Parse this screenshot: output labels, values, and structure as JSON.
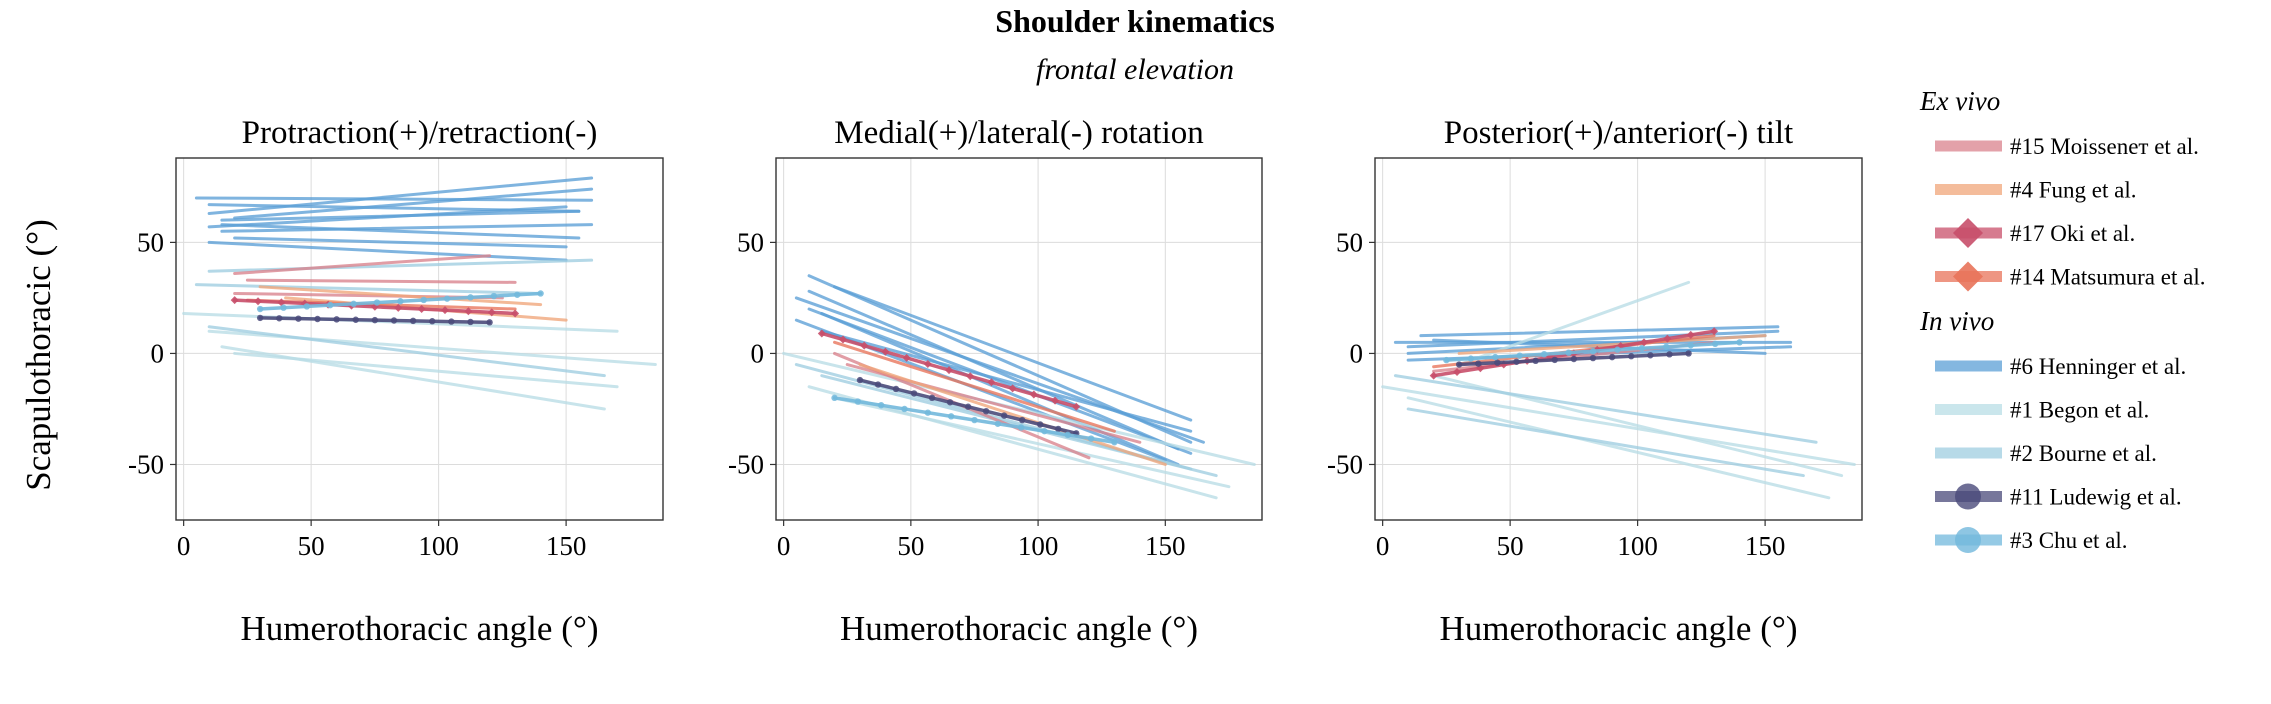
{
  "figure": {
    "title": "Shoulder kinematics",
    "subtitle": "frontal elevation",
    "ylabel": "Scapulothoracic (°)",
    "xlabel": "Humerothoracic angle (°)"
  },
  "colors": {
    "moissenet": "#d9818c",
    "fung": "#f0a57a",
    "oki": "#c84f6a",
    "matsumura": "#e8735a",
    "henninger": "#5b9fd6",
    "begon": "#b8dde6",
    "bourne": "#9fcde0",
    "ludewig": "#4a4a7a",
    "chu": "#72b8dc"
  },
  "legend": [
    {
      "group": "Ex vivo",
      "items": [
        {
          "label": "#15 Moisseneт et al.",
          "color_key": "moissenet",
          "marker": "none"
        },
        {
          "label": "#4 Fung et al.",
          "color_key": "fung",
          "marker": "none"
        },
        {
          "label": "#17 Oki et al.",
          "color_key": "oki",
          "marker": "diamond"
        },
        {
          "label": "#14 Matsumura et al.",
          "color_key": "matsumura",
          "marker": "diamond"
        }
      ]
    },
    {
      "group": "In vivo",
      "items": [
        {
          "label": "#6 Henninger et al.",
          "color_key": "henninger",
          "marker": "none"
        },
        {
          "label": "#1 Begon et al.",
          "color_key": "begon",
          "marker": "none"
        },
        {
          "label": "#2 Bourne et al.",
          "color_key": "bourne",
          "marker": "none"
        },
        {
          "label": "#11 Ludewig et al.",
          "color_key": "ludewig",
          "marker": "circle"
        },
        {
          "label": "#3 Chu et al.",
          "color_key": "chu",
          "marker": "circle"
        }
      ]
    }
  ],
  "chart_data": [
    {
      "type": "line",
      "title": "Protraction(+)/retraction(-)",
      "xlabel": "Humerothoracic angle (°)",
      "ylabel": "Scapulothoracic (°)",
      "xlim": [
        -3,
        188
      ],
      "ylim": [
        -75,
        88
      ],
      "xticks": [
        0,
        50,
        100,
        150
      ],
      "yticks": [
        -50,
        0,
        50
      ],
      "grid": true,
      "series": [
        {
          "study": "henninger",
          "x": [
            5,
            160
          ],
          "y": [
            70,
            69
          ]
        },
        {
          "study": "henninger",
          "x": [
            10,
            155
          ],
          "y": [
            67,
            64
          ]
        },
        {
          "study": "henninger",
          "x": [
            10,
            160
          ],
          "y": [
            63,
            79
          ]
        },
        {
          "study": "henninger",
          "x": [
            15,
            155
          ],
          "y": [
            60,
            64
          ]
        },
        {
          "study": "henninger",
          "x": [
            10,
            150
          ],
          "y": [
            57,
            66
          ]
        },
        {
          "study": "henninger",
          "x": [
            15,
            160
          ],
          "y": [
            55,
            58
          ]
        },
        {
          "study": "henninger",
          "x": [
            20,
            150
          ],
          "y": [
            52,
            48
          ]
        },
        {
          "study": "henninger",
          "x": [
            10,
            150
          ],
          "y": [
            50,
            42
          ]
        },
        {
          "study": "henninger",
          "x": [
            15,
            155
          ],
          "y": [
            58,
            52
          ]
        },
        {
          "study": "henninger",
          "x": [
            20,
            160
          ],
          "y": [
            61,
            74
          ]
        },
        {
          "study": "bourne",
          "x": [
            10,
            160
          ],
          "y": [
            37,
            42
          ]
        },
        {
          "study": "bourne",
          "x": [
            5,
            140
          ],
          "y": [
            31,
            27
          ]
        },
        {
          "study": "begon",
          "x": [
            0,
            170
          ],
          "y": [
            18,
            10
          ]
        },
        {
          "study": "begon",
          "x": [
            10,
            185
          ],
          "y": [
            10,
            -5
          ]
        },
        {
          "study": "begon",
          "x": [
            15,
            165
          ],
          "y": [
            3,
            -25
          ]
        },
        {
          "study": "begon",
          "x": [
            20,
            170
          ],
          "y": [
            0,
            -15
          ]
        },
        {
          "study": "bourne",
          "x": [
            10,
            165
          ],
          "y": [
            12,
            -10
          ]
        },
        {
          "study": "moissenet",
          "x": [
            20,
            120
          ],
          "y": [
            36,
            44
          ]
        },
        {
          "study": "moissenet",
          "x": [
            25,
            130
          ],
          "y": [
            33,
            32
          ]
        },
        {
          "study": "moissenet",
          "x": [
            20,
            125
          ],
          "y": [
            27,
            25
          ]
        },
        {
          "study": "fung",
          "x": [
            40,
            150
          ],
          "y": [
            25,
            15
          ]
        },
        {
          "study": "fung",
          "x": [
            30,
            140
          ],
          "y": [
            30,
            22
          ]
        },
        {
          "study": "matsumura",
          "x": [
            25,
            130
          ],
          "y": [
            24,
            20
          ]
        },
        {
          "study": "oki",
          "x": [
            20,
            130
          ],
          "y": [
            24,
            18
          ],
          "marker": "diamond"
        },
        {
          "study": "ludewig",
          "x": [
            30,
            120
          ],
          "y": [
            16,
            14
          ],
          "marker": "circle"
        },
        {
          "study": "chu",
          "x": [
            30,
            140
          ],
          "y": [
            20,
            27
          ],
          "marker": "circle"
        }
      ]
    },
    {
      "type": "line",
      "title": "Medial(+)/lateral(-) rotation",
      "xlabel": "Humerothoracic angle (°)",
      "ylabel": "",
      "xlim": [
        -3,
        188
      ],
      "ylim": [
        -75,
        88
      ],
      "xticks": [
        0,
        50,
        100,
        150
      ],
      "yticks": [
        -50,
        0,
        50
      ],
      "grid": true,
      "series": [
        {
          "study": "henninger",
          "x": [
            10,
            160
          ],
          "y": [
            35,
            -40
          ]
        },
        {
          "study": "henninger",
          "x": [
            5,
            165
          ],
          "y": [
            25,
            -40
          ]
        },
        {
          "study": "henninger",
          "x": [
            10,
            160
          ],
          "y": [
            20,
            -45
          ]
        },
        {
          "study": "henninger",
          "x": [
            15,
            155
          ],
          "y": [
            18,
            -50
          ]
        },
        {
          "study": "henninger",
          "x": [
            20,
            160
          ],
          "y": [
            30,
            -30
          ]
        },
        {
          "study": "henninger",
          "x": [
            5,
            150
          ],
          "y": [
            15,
            -48
          ]
        },
        {
          "study": "henninger",
          "x": [
            10,
            155
          ],
          "y": [
            28,
            -43
          ]
        },
        {
          "study": "henninger",
          "x": [
            15,
            160
          ],
          "y": [
            10,
            -35
          ]
        },
        {
          "study": "begon",
          "x": [
            0,
            185
          ],
          "y": [
            0,
            -50
          ]
        },
        {
          "study": "begon",
          "x": [
            10,
            170
          ],
          "y": [
            -15,
            -65
          ]
        },
        {
          "study": "begon",
          "x": [
            20,
            175
          ],
          "y": [
            -20,
            -60
          ]
        },
        {
          "study": "bourne",
          "x": [
            15,
            170
          ],
          "y": [
            -10,
            -55
          ]
        },
        {
          "study": "bourne",
          "x": [
            5,
            160
          ],
          "y": [
            -5,
            -52
          ]
        },
        {
          "study": "moissenet",
          "x": [
            20,
            120
          ],
          "y": [
            0,
            -47
          ]
        },
        {
          "study": "moissenet",
          "x": [
            25,
            140
          ],
          "y": [
            -5,
            -40
          ]
        },
        {
          "study": "fung",
          "x": [
            30,
            150
          ],
          "y": [
            -5,
            -50
          ]
        },
        {
          "study": "matsumura",
          "x": [
            20,
            130
          ],
          "y": [
            5,
            -35
          ]
        },
        {
          "study": "oki",
          "x": [
            15,
            115
          ],
          "y": [
            9,
            -24
          ],
          "marker": "diamond"
        },
        {
          "study": "ludewig",
          "x": [
            30,
            115
          ],
          "y": [
            -12,
            -36
          ],
          "marker": "circle"
        },
        {
          "study": "chu",
          "x": [
            20,
            130
          ],
          "y": [
            -20,
            -40
          ],
          "marker": "circle"
        }
      ]
    },
    {
      "type": "line",
      "title": "Posterior(+)/anterior(-) tilt",
      "xlabel": "Humerothoracic angle (°)",
      "ylabel": "",
      "xlim": [
        -3,
        188
      ],
      "ylim": [
        -75,
        88
      ],
      "xticks": [
        0,
        50,
        100,
        150
      ],
      "yticks": [
        -50,
        0,
        50
      ],
      "grid": true,
      "series": [
        {
          "study": "henninger",
          "x": [
            5,
            160
          ],
          "y": [
            5,
            5
          ]
        },
        {
          "study": "henninger",
          "x": [
            10,
            155
          ],
          "y": [
            3,
            10
          ]
        },
        {
          "study": "henninger",
          "x": [
            10,
            150
          ],
          "y": [
            0,
            8
          ]
        },
        {
          "study": "henninger",
          "x": [
            15,
            155
          ],
          "y": [
            8,
            12
          ]
        },
        {
          "study": "henninger",
          "x": [
            10,
            160
          ],
          "y": [
            -3,
            3
          ]
        },
        {
          "study": "henninger",
          "x": [
            20,
            150
          ],
          "y": [
            6,
            0
          ]
        },
        {
          "study": "begon",
          "x": [
            0,
            185
          ],
          "y": [
            -15,
            -50
          ]
        },
        {
          "study": "begon",
          "x": [
            10,
            175
          ],
          "y": [
            -20,
            -65
          ]
        },
        {
          "study": "begon",
          "x": [
            20,
            180
          ],
          "y": [
            -10,
            -55
          ]
        },
        {
          "study": "begon",
          "x": [
            30,
            120
          ],
          "y": [
            -5,
            32
          ]
        },
        {
          "study": "bourne",
          "x": [
            5,
            170
          ],
          "y": [
            -10,
            -40
          ]
        },
        {
          "study": "bourne",
          "x": [
            10,
            165
          ],
          "y": [
            -25,
            -55
          ]
        },
        {
          "study": "moissenet",
          "x": [
            20,
            130
          ],
          "y": [
            -8,
            5
          ]
        },
        {
          "study": "fung",
          "x": [
            30,
            150
          ],
          "y": [
            0,
            8
          ]
        },
        {
          "study": "matsumura",
          "x": [
            20,
            130
          ],
          "y": [
            -6,
            8
          ]
        },
        {
          "study": "oki",
          "x": [
            20,
            130
          ],
          "y": [
            -10,
            10
          ],
          "marker": "diamond"
        },
        {
          "study": "ludewig",
          "x": [
            30,
            120
          ],
          "y": [
            -5,
            0
          ],
          "marker": "circle"
        },
        {
          "study": "chu",
          "x": [
            25,
            140
          ],
          "y": [
            -3,
            5
          ],
          "marker": "circle"
        }
      ]
    }
  ]
}
